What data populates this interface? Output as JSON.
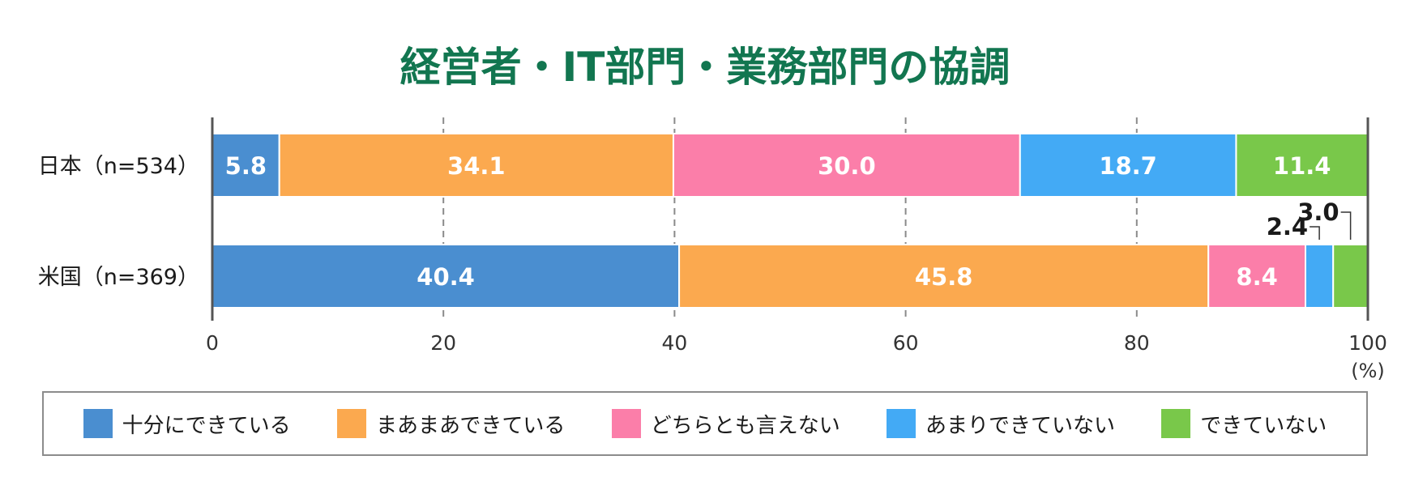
{
  "chart_data": {
    "type": "bar",
    "orientation": "horizontal",
    "stacked": true,
    "title": "経営者・IT部門・業務部門の協調",
    "categories": [
      "日本（n=534）",
      "米国（n=369）"
    ],
    "series": [
      {
        "name": "十分にできている",
        "color": "#4a8ed0",
        "values": [
          5.8,
          40.4
        ]
      },
      {
        "name": "まあまあできている",
        "color": "#fba94f",
        "values": [
          34.1,
          45.8
        ]
      },
      {
        "name": "どちらとも言えない",
        "color": "#fb7ea9",
        "values": [
          30.0,
          8.4
        ]
      },
      {
        "name": "あまりできていない",
        "color": "#43aaf5",
        "values": [
          18.7,
          2.4
        ]
      },
      {
        "name": "できていない",
        "color": "#79c84a",
        "values": [
          11.4,
          3.0
        ]
      }
    ],
    "xlim": [
      0,
      100
    ],
    "xticks": [
      "0",
      "20",
      "40",
      "60",
      "80",
      "100"
    ],
    "xunit": "(%)",
    "grid": true,
    "legend_position": "bottom",
    "title_color": "#127650"
  }
}
